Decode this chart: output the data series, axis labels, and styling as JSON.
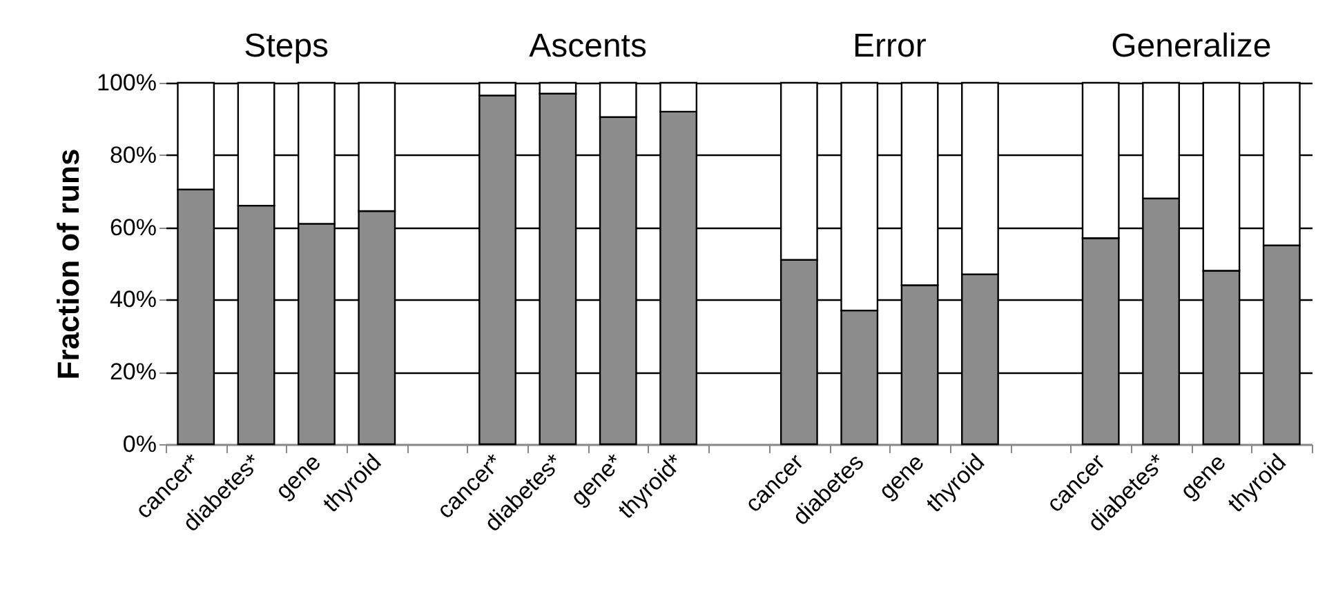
{
  "chart_data": {
    "type": "bar",
    "stacked": true,
    "ylabel": "Fraction of runs",
    "annotations": [
      "Steps",
      "Ascents",
      "Error",
      "Generalize"
    ],
    "categories": [
      "cancer*",
      "diabetes*",
      "gene",
      "thyroid",
      null,
      "cancer*",
      "diabetes*",
      "gene*",
      "thyroid*",
      null,
      "cancer",
      "diabetes",
      "gene",
      "thyroid",
      null,
      "cancer",
      "diabetes*",
      "gene",
      "thyroid"
    ],
    "series": [
      {
        "color": "#8c8c8c",
        "values": [
          70.5,
          66,
          61,
          64.5,
          null,
          96.5,
          97,
          90.5,
          92,
          null,
          51,
          37,
          44,
          47,
          null,
          57,
          68,
          48,
          55
        ]
      },
      {
        "color": "#ffffff",
        "values": [
          29.5,
          34,
          39,
          35.5,
          null,
          3.5,
          3,
          9.5,
          8,
          null,
          49,
          63,
          56,
          53,
          null,
          43,
          32,
          52,
          45
        ]
      }
    ],
    "ylim": [
      0,
      100
    ],
    "yticks": [
      {
        "value": 0,
        "label": "0%"
      },
      {
        "value": 20,
        "label": "20%"
      },
      {
        "value": 40,
        "label": "40%"
      },
      {
        "value": 60,
        "label": "60%"
      },
      {
        "value": 80,
        "label": "80%"
      },
      {
        "value": 100,
        "label": "100%"
      }
    ],
    "grid": "y",
    "legend": false
  }
}
